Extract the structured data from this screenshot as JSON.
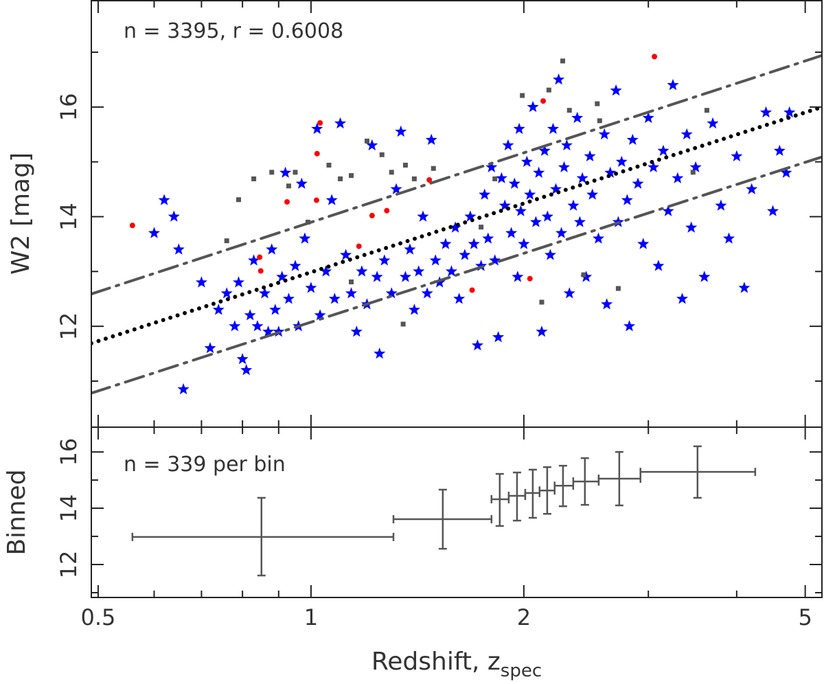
{
  "chart_data": [
    {
      "type": "scatter",
      "annotation": "n = 3395, r = 0.6008",
      "ylabel": "W2 [mag]",
      "xlim": [
        0.489,
        5.28
      ],
      "log_x": true,
      "ylim": [
        10.16,
        17.94
      ],
      "yticks": [
        12,
        14,
        16
      ],
      "yminor": [
        11,
        13,
        15,
        17
      ],
      "series": [
        {
          "marker": "star",
          "color": "#0000ff",
          "points": [
            [
              0.6,
              13.7
            ],
            [
              0.62,
              14.3
            ],
            [
              0.64,
              14.0
            ],
            [
              0.65,
              13.4
            ],
            [
              0.66,
              10.85
            ],
            [
              0.7,
              12.8
            ],
            [
              0.72,
              11.6
            ],
            [
              0.74,
              12.3
            ],
            [
              0.76,
              12.6
            ],
            [
              0.78,
              12.0
            ],
            [
              0.79,
              12.8
            ],
            [
              0.8,
              11.4
            ],
            [
              0.81,
              11.2
            ],
            [
              0.82,
              12.2
            ],
            [
              0.83,
              13.2
            ],
            [
              0.84,
              12.0
            ],
            [
              0.86,
              12.6
            ],
            [
              0.87,
              11.9
            ],
            [
              0.88,
              13.4
            ],
            [
              0.89,
              12.3
            ],
            [
              0.9,
              11.9
            ],
            [
              0.91,
              12.9
            ],
            [
              0.92,
              14.8
            ],
            [
              0.93,
              12.5
            ],
            [
              0.95,
              13.1
            ],
            [
              0.96,
              12.0
            ],
            [
              0.97,
              14.6
            ],
            [
              0.98,
              13.6
            ],
            [
              1.0,
              12.7
            ],
            [
              1.02,
              15.6
            ],
            [
              1.03,
              12.2
            ],
            [
              1.05,
              13.0
            ],
            [
              1.07,
              14.3
            ],
            [
              1.08,
              12.5
            ],
            [
              1.1,
              15.7
            ],
            [
              1.12,
              13.3
            ],
            [
              1.14,
              12.6
            ],
            [
              1.16,
              11.9
            ],
            [
              1.18,
              13.0
            ],
            [
              1.2,
              12.4
            ],
            [
              1.22,
              15.3
            ],
            [
              1.24,
              12.9
            ],
            [
              1.25,
              11.5
            ],
            [
              1.27,
              13.2
            ],
            [
              1.3,
              12.6
            ],
            [
              1.32,
              14.5
            ],
            [
              1.34,
              15.55
            ],
            [
              1.36,
              12.9
            ],
            [
              1.38,
              13.4
            ],
            [
              1.4,
              12.3
            ],
            [
              1.42,
              13.0
            ],
            [
              1.44,
              14.0
            ],
            [
              1.46,
              12.6
            ],
            [
              1.48,
              15.4
            ],
            [
              1.5,
              13.2
            ],
            [
              1.52,
              12.8
            ],
            [
              1.55,
              13.5
            ],
            [
              1.58,
              13.0
            ],
            [
              1.6,
              13.8
            ],
            [
              1.62,
              12.5
            ],
            [
              1.65,
              13.3
            ],
            [
              1.68,
              14.0
            ],
            [
              1.7,
              13.5
            ],
            [
              1.72,
              11.65
            ],
            [
              1.74,
              13.1
            ],
            [
              1.76,
              14.4
            ],
            [
              1.78,
              13.6
            ],
            [
              1.8,
              14.9
            ],
            [
              1.82,
              13.2
            ],
            [
              1.84,
              11.8
            ],
            [
              1.86,
              14.7
            ],
            [
              1.88,
              14.2
            ],
            [
              1.9,
              15.3
            ],
            [
              1.92,
              13.7
            ],
            [
              1.94,
              14.6
            ],
            [
              1.96,
              12.9
            ],
            [
              1.97,
              15.6
            ],
            [
              1.98,
              14.1
            ],
            [
              2.0,
              13.5
            ],
            [
              2.02,
              15.0
            ],
            [
              2.04,
              14.4
            ],
            [
              2.06,
              16.0
            ],
            [
              2.08,
              13.9
            ],
            [
              2.1,
              14.8
            ],
            [
              2.12,
              11.9
            ],
            [
              2.14,
              15.2
            ],
            [
              2.16,
              14.0
            ],
            [
              2.18,
              13.3
            ],
            [
              2.2,
              15.6
            ],
            [
              2.22,
              14.5
            ],
            [
              2.24,
              16.5
            ],
            [
              2.26,
              13.7
            ],
            [
              2.28,
              14.9
            ],
            [
              2.3,
              15.3
            ],
            [
              2.32,
              12.6
            ],
            [
              2.35,
              14.2
            ],
            [
              2.38,
              15.8
            ],
            [
              2.4,
              13.9
            ],
            [
              2.42,
              14.7
            ],
            [
              2.45,
              12.9
            ],
            [
              2.48,
              15.1
            ],
            [
              2.5,
              14.4
            ],
            [
              2.55,
              13.6
            ],
            [
              2.6,
              15.5
            ],
            [
              2.62,
              12.4
            ],
            [
              2.65,
              14.8
            ],
            [
              2.7,
              16.3
            ],
            [
              2.72,
              13.9
            ],
            [
              2.75,
              15.0
            ],
            [
              2.8,
              14.3
            ],
            [
              2.82,
              12.0
            ],
            [
              2.85,
              15.4
            ],
            [
              2.9,
              14.6
            ],
            [
              2.95,
              13.5
            ],
            [
              3.0,
              15.8
            ],
            [
              3.05,
              14.9
            ],
            [
              3.1,
              13.1
            ],
            [
              3.15,
              15.2
            ],
            [
              3.2,
              14.1
            ],
            [
              3.25,
              16.4
            ],
            [
              3.3,
              14.7
            ],
            [
              3.35,
              12.5
            ],
            [
              3.4,
              15.5
            ],
            [
              3.45,
              13.8
            ],
            [
              3.5,
              14.9
            ],
            [
              3.6,
              12.9
            ],
            [
              3.7,
              15.7
            ],
            [
              3.8,
              14.2
            ],
            [
              3.9,
              13.6
            ],
            [
              4.0,
              15.1
            ],
            [
              4.1,
              12.7
            ],
            [
              4.2,
              14.5
            ],
            [
              4.4,
              15.9
            ],
            [
              4.5,
              14.1
            ],
            [
              4.6,
              15.2
            ],
            [
              4.7,
              14.8
            ],
            [
              4.75,
              15.9
            ]
          ]
        },
        {
          "marker": "square",
          "color": "#555555",
          "points": [
            [
              0.76,
              13.56
            ],
            [
              0.79,
              14.31
            ],
            [
              0.83,
              14.69
            ],
            [
              0.88,
              14.81
            ],
            [
              0.93,
              14.56
            ],
            [
              0.95,
              14.81
            ],
            [
              0.99,
              13.9
            ],
            [
              1.06,
              14.94
            ],
            [
              1.1,
              14.69
            ],
            [
              1.14,
              14.75
            ],
            [
              1.2,
              15.38
            ],
            [
              1.26,
              15.13
            ],
            [
              1.3,
              14.81
            ],
            [
              1.36,
              14.94
            ],
            [
              1.4,
              14.69
            ],
            [
              1.49,
              14.88
            ],
            [
              1.14,
              12.81
            ],
            [
              1.35,
              12.04
            ],
            [
              2.27,
              16.84
            ],
            [
              2.17,
              16.31
            ],
            [
              1.99,
              16.21
            ],
            [
              2.32,
              15.94
            ],
            [
              2.54,
              16.06
            ],
            [
              2.56,
              15.75
            ],
            [
              2.12,
              12.44
            ],
            [
              2.43,
              12.94
            ],
            [
              2.72,
              12.69
            ],
            [
              3.63,
              15.94
            ],
            [
              3.47,
              14.81
            ],
            [
              1.82,
              14.69
            ],
            [
              1.74,
              13.81
            ]
          ]
        },
        {
          "marker": "circle",
          "color": "#ff0000",
          "points": [
            [
              0.559,
              13.84
            ],
            [
              0.846,
              13.26
            ],
            [
              0.849,
              13.01
            ],
            [
              0.925,
              14.27
            ],
            [
              1.018,
              14.3
            ],
            [
              1.02,
              15.15
            ],
            [
              1.03,
              15.71
            ],
            [
              1.169,
              13.46
            ],
            [
              1.22,
              14.02
            ],
            [
              1.28,
              14.11
            ],
            [
              1.47,
              14.67
            ],
            [
              1.69,
              12.66
            ],
            [
              2.04,
              12.87
            ],
            [
              2.13,
              16.11
            ],
            [
              3.06,
              16.92
            ]
          ]
        }
      ],
      "lines": [
        {
          "color": "#555555",
          "dash": "28 10 4 10",
          "x": [
            0.489,
            5.28
          ],
          "y": [
            12.59,
            16.94
          ]
        },
        {
          "color": "#000000",
          "dash": "0 11",
          "x": [
            0.489,
            5.28
          ],
          "y": [
            11.69,
            16.0
          ]
        },
        {
          "color": "#555555",
          "dash": "28 10 4 10",
          "x": [
            0.489,
            5.28
          ],
          "y": [
            10.78,
            15.09
          ]
        }
      ]
    },
    {
      "type": "errorbar",
      "annotation": "n = 339 per bin",
      "ylabel": "Binned",
      "xlabel": {
        "text": "Redshift, z",
        "sub": "spec"
      },
      "xlim": [
        0.489,
        5.28
      ],
      "log_x": true,
      "xticks": [
        0.5,
        1,
        2,
        5
      ],
      "xminor": [
        0.6,
        0.7,
        0.8,
        0.9,
        3,
        4
      ],
      "ylim": [
        10.83,
        16.88
      ],
      "yticks": [
        12,
        14,
        16
      ],
      "yminor": [
        11,
        13,
        15
      ],
      "color": "#555555",
      "x": [
        0.851,
        1.536,
        1.849,
        1.956,
        2.059,
        2.158,
        2.272,
        2.44,
        2.729,
        3.521
      ],
      "xlow": [
        0.559,
        1.308,
        1.8,
        1.904,
        2.009,
        2.105,
        2.211,
        2.349,
        2.552,
        2.924
      ],
      "xhigh": [
        1.308,
        1.8,
        1.904,
        2.009,
        2.105,
        2.211,
        2.349,
        2.552,
        2.924,
        4.249
      ],
      "y": [
        12.98,
        13.61,
        14.32,
        14.44,
        14.54,
        14.63,
        14.8,
        14.95,
        15.05,
        15.29
      ],
      "ylow": [
        11.61,
        12.56,
        13.37,
        13.56,
        13.66,
        13.8,
        14.07,
        14.12,
        14.1,
        14.37
      ],
      "yhigh": [
        14.37,
        14.66,
        15.22,
        15.27,
        15.37,
        15.46,
        15.51,
        15.78,
        16.0,
        16.2
      ]
    }
  ]
}
